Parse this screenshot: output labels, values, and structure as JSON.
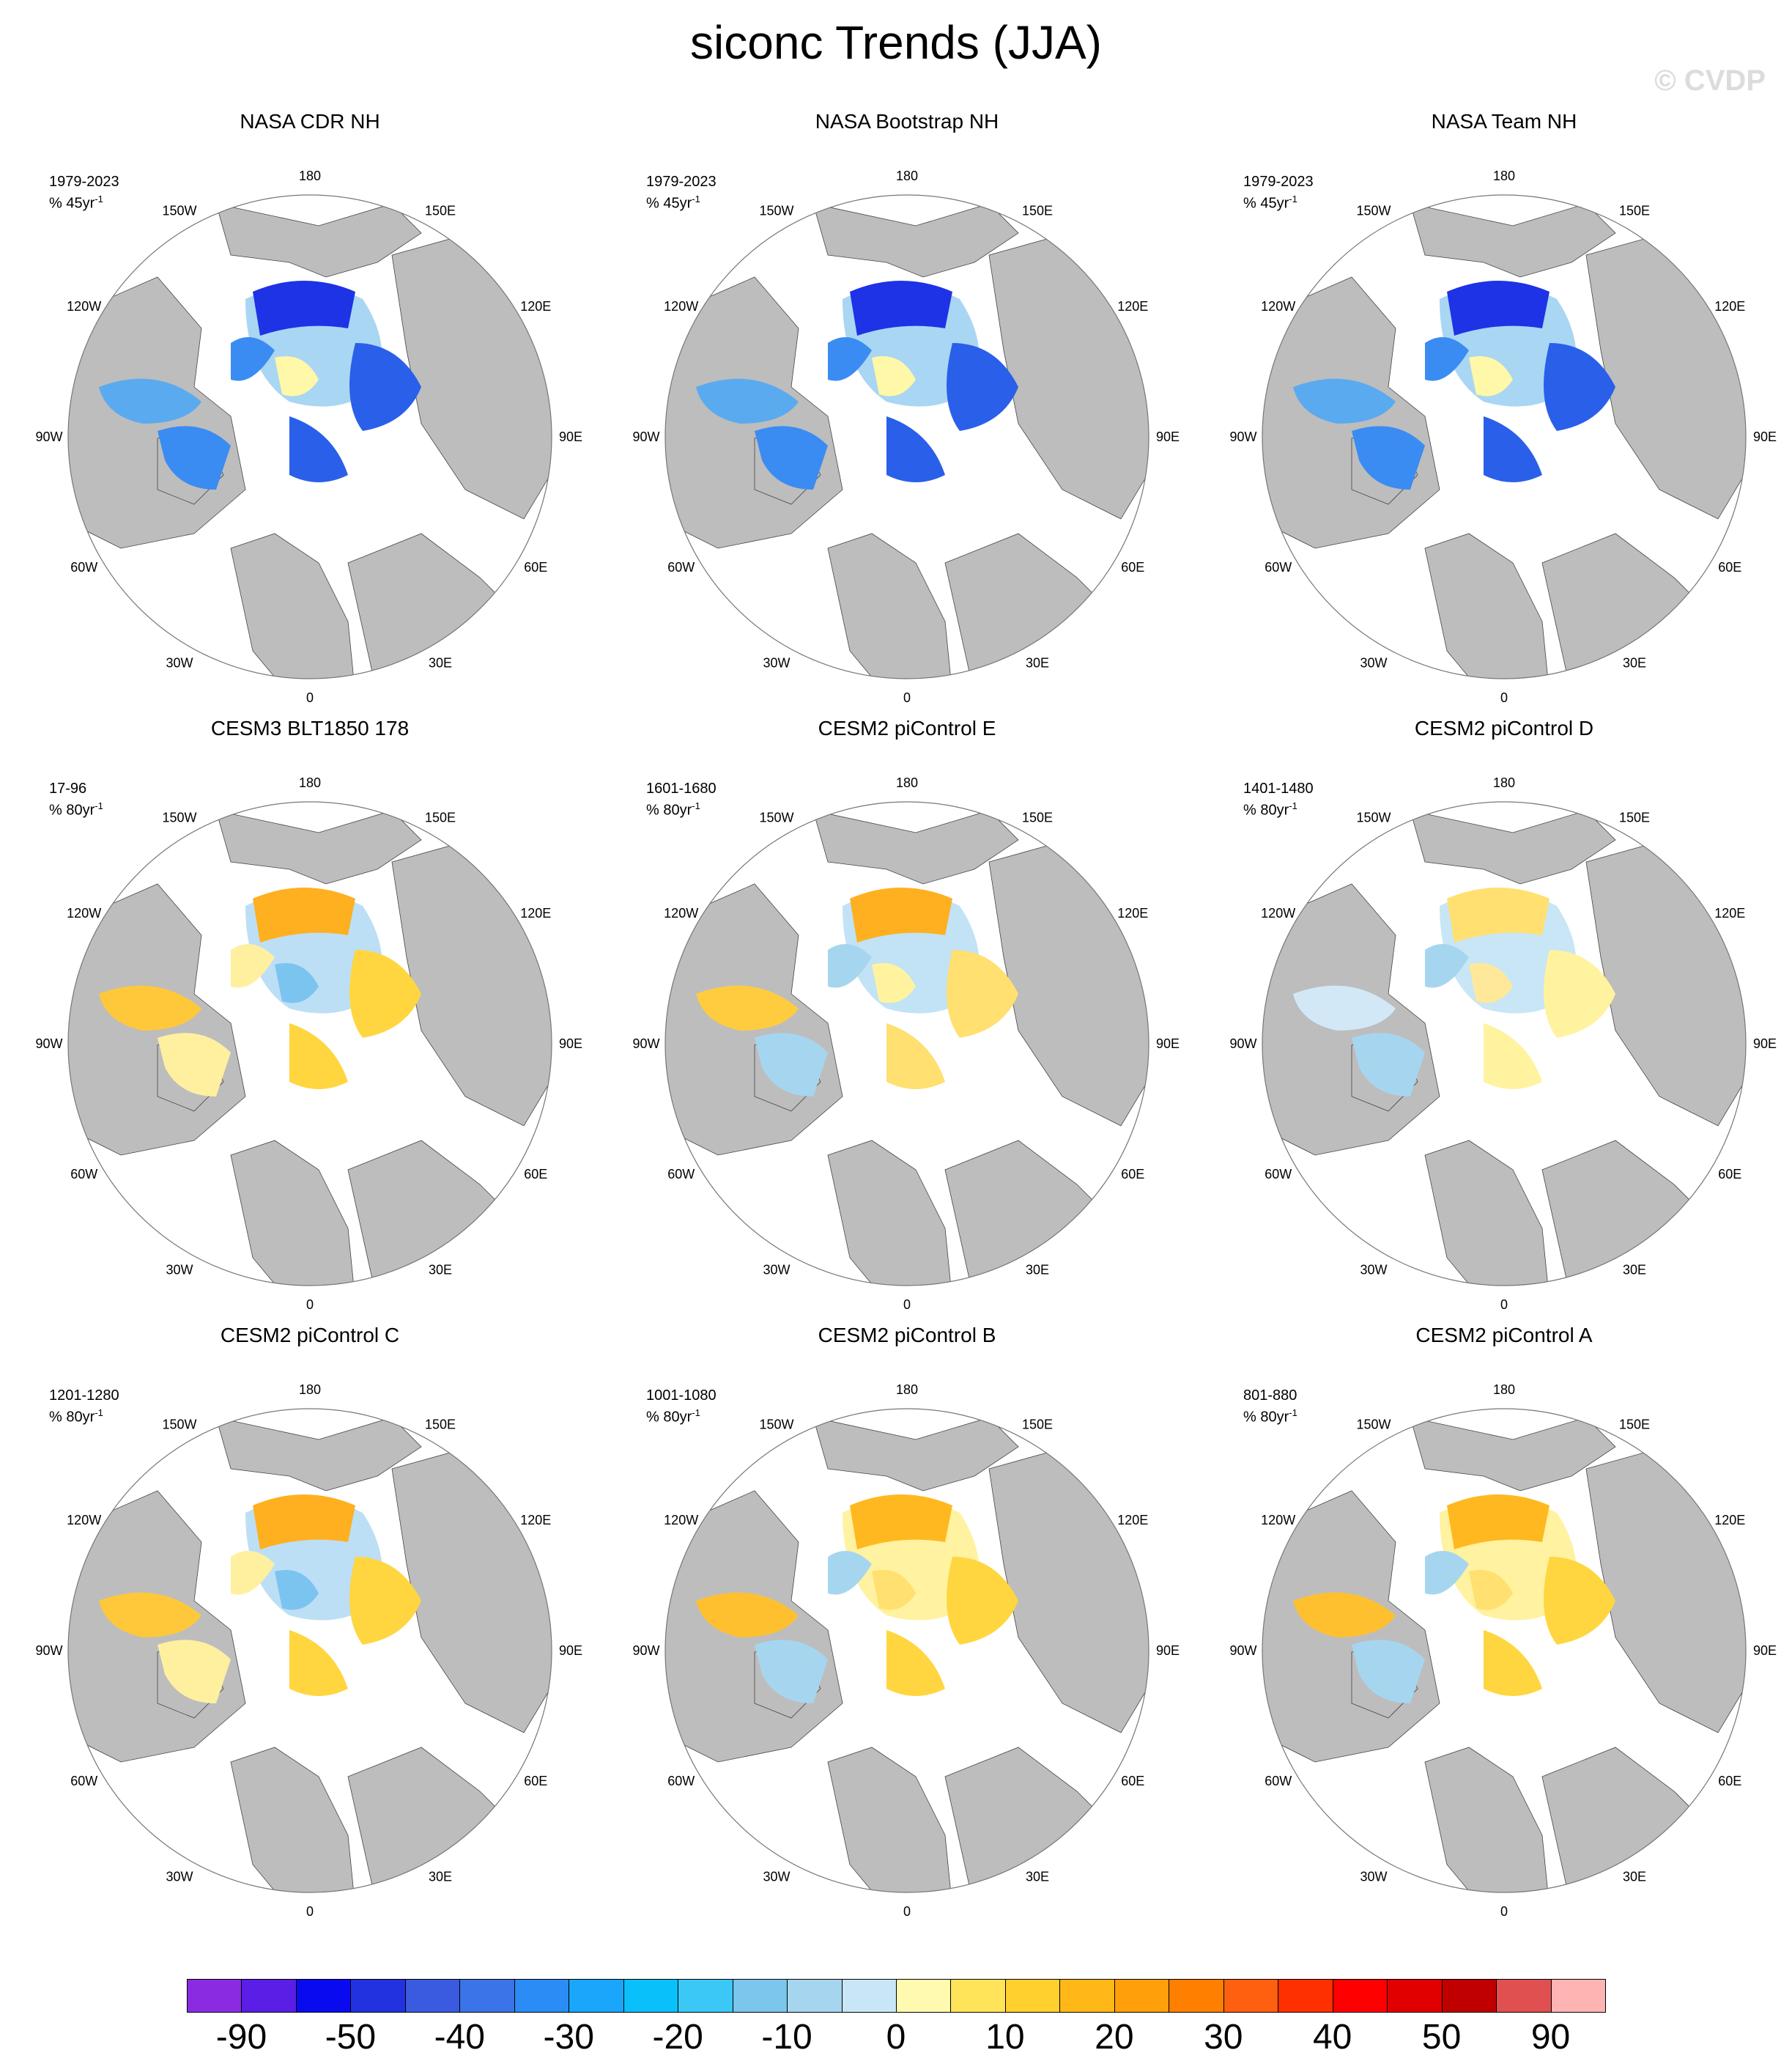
{
  "title": "siconc Trends (JJA)",
  "watermark": "© CVDP",
  "lon_labels": [
    "180",
    "150W",
    "150E",
    "120W",
    "120E",
    "90W",
    "90E",
    "60W",
    "60E",
    "30W",
    "30E",
    "0"
  ],
  "panels": [
    {
      "title": "NASA CDR NH",
      "period": "1979-2023",
      "units": "% 45yr",
      "exp": "-1",
      "scheme": "obs"
    },
    {
      "title": "NASA Bootstrap NH",
      "period": "1979-2023",
      "units": "% 45yr",
      "exp": "-1",
      "scheme": "obs"
    },
    {
      "title": "NASA Team NH",
      "period": "1979-2023",
      "units": "% 45yr",
      "exp": "-1",
      "scheme": "obs"
    },
    {
      "title": "CESM3 BLT1850 178",
      "period": "17-96",
      "units": "% 80yr",
      "exp": "-1",
      "scheme": "mixA"
    },
    {
      "title": "CESM2 piControl E",
      "period": "1601-1680",
      "units": "% 80yr",
      "exp": "-1",
      "scheme": "mixB"
    },
    {
      "title": "CESM2 piControl D",
      "period": "1401-1480",
      "units": "% 80yr",
      "exp": "-1",
      "scheme": "mixC"
    },
    {
      "title": "CESM2 piControl C",
      "period": "1201-1280",
      "units": "% 80yr",
      "exp": "-1",
      "scheme": "mixA"
    },
    {
      "title": "CESM2 piControl B",
      "period": "1001-1080",
      "units": "% 80yr",
      "exp": "-1",
      "scheme": "warm"
    },
    {
      "title": "CESM2 piControl A",
      "period": "801-880",
      "units": "% 80yr",
      "exp": "-1",
      "scheme": "warm"
    }
  ],
  "colorbar": {
    "colors": [
      "#8a2be2",
      "#5a1ee6",
      "#0a0af0",
      "#2232e0",
      "#3a5ae0",
      "#3a74e8",
      "#2a8cf4",
      "#1aa6fb",
      "#0ac0fa",
      "#3cc8f6",
      "#7ac6ec",
      "#a6d6ef",
      "#c8e6f6",
      "#fffab0",
      "#ffe45a",
      "#ffd02e",
      "#ffb818",
      "#ffa00a",
      "#ff8000",
      "#ff6010",
      "#ff3000",
      "#ff0000",
      "#e00000",
      "#c00000",
      "#e05050",
      "#ffb4b4"
    ],
    "labels": [
      "-90",
      "-50",
      "-40",
      "-30",
      "-20",
      "-10",
      "0",
      "10",
      "20",
      "30",
      "40",
      "50",
      "90"
    ]
  }
}
